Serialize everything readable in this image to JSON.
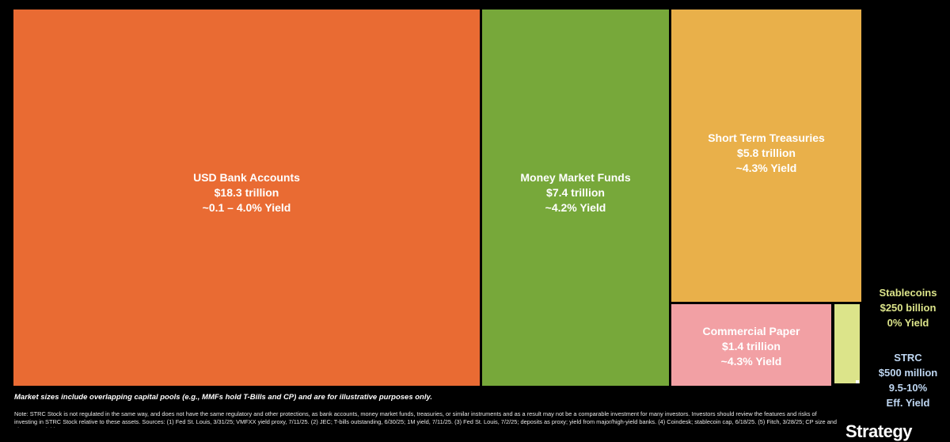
{
  "chart_data": {
    "type": "treemap",
    "units": "trillion USD",
    "tiles": [
      {
        "id": "usd-bank",
        "name": "USD Bank Accounts",
        "size": "$18.3 trillion",
        "yield": "~0.1 – 4.0% Yield",
        "value": 18.3,
        "color": "#E96B33"
      },
      {
        "id": "mmf",
        "name": "Money Market Funds",
        "size": "$7.4 trillion",
        "yield": "~4.2% Yield",
        "value": 7.4,
        "color": "#77A83A"
      },
      {
        "id": "treasuries",
        "name": "Short Term Treasuries",
        "size": "$5.8 trillion",
        "yield": "~4.3% Yield",
        "value": 5.8,
        "color": "#E9B04A"
      },
      {
        "id": "cp",
        "name": "Commercial Paper",
        "size": "$1.4 trillion",
        "yield": "~4.3% Yield",
        "value": 1.4,
        "color": "#F2A0A4"
      },
      {
        "id": "stablecoins",
        "name": "Stablecoins",
        "size": "$250 billion",
        "yield": "0% Yield",
        "value": 0.25,
        "color": "#DCE48A",
        "label_color": "#DCE48A"
      },
      {
        "id": "strc",
        "name": "STRC",
        "size": "$500 million",
        "yield": "9.5-10%",
        "yield2": "Eff. Yield",
        "value": 0.0005,
        "color": "#FFFFFF",
        "label_color": "#BFD7F2"
      }
    ]
  },
  "footer": {
    "disclaimer": "Market sizes include overlapping capital pools (e.g., MMFs hold T-Bills and CP) and are for illustrative purposes only.",
    "note": "Note: STRC Stock is not regulated in the same way, and does not have the same regulatory and other protections, as bank accounts, money market funds, treasuries, or similar instruments and as a result may not be a comparable investment for many investors. Investors should review the features and risks of investing in STRC Stock relative to these assets. Sources: (1) Fed St. Louis, 3/31/25; VMFXX yield proxy, 7/11/25. (2) JEC; T-bills outstanding, 6/30/25; 1M yield, 7/11/25. (3) Fed St. Louis, 7/2/25; deposits as proxy; yield from major/high-yield banks. (4) Coindesk; stablecoin cap, 6/18/25. (5) Fitch, 3/28/25; CP size and Tier 1 30D yield.",
    "logo": "Strategy"
  }
}
